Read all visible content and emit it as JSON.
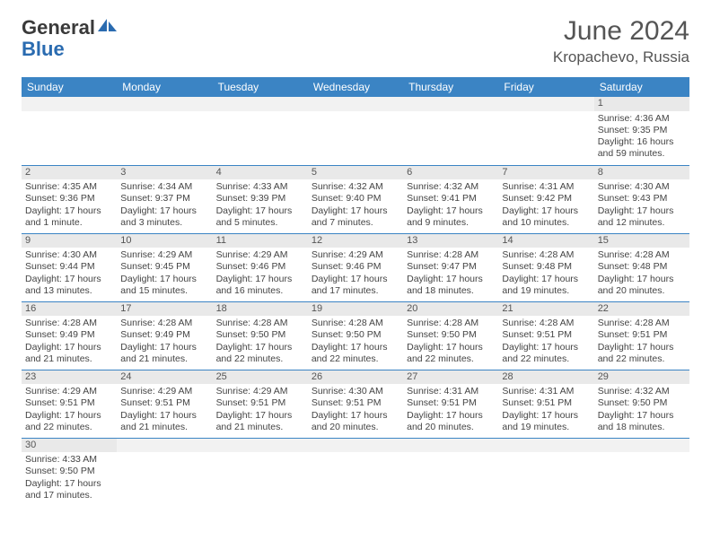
{
  "logo": {
    "text_general": "Genera",
    "text_l": "l",
    "text_blue": "Blue"
  },
  "header": {
    "month_title": "June 2024",
    "location": "Kropachevo, Russia"
  },
  "colors": {
    "header_bg": "#3b84c4",
    "header_text": "#ffffff",
    "daynum_bg": "#e9e9e9",
    "border": "#3b84c4",
    "text": "#444444",
    "logo_dark": "#3a3a3a",
    "logo_blue": "#2a6bb0"
  },
  "weekdays": [
    "Sunday",
    "Monday",
    "Tuesday",
    "Wednesday",
    "Thursday",
    "Friday",
    "Saturday"
  ],
  "layout": {
    "columns": 7,
    "rows": 6,
    "first_weekday_index": 6,
    "days_in_month": 30
  },
  "days": {
    "1": {
      "sunrise": "4:36 AM",
      "sunset": "9:35 PM",
      "daylight": "16 hours and 59 minutes."
    },
    "2": {
      "sunrise": "4:35 AM",
      "sunset": "9:36 PM",
      "daylight": "17 hours and 1 minute."
    },
    "3": {
      "sunrise": "4:34 AM",
      "sunset": "9:37 PM",
      "daylight": "17 hours and 3 minutes."
    },
    "4": {
      "sunrise": "4:33 AM",
      "sunset": "9:39 PM",
      "daylight": "17 hours and 5 minutes."
    },
    "5": {
      "sunrise": "4:32 AM",
      "sunset": "9:40 PM",
      "daylight": "17 hours and 7 minutes."
    },
    "6": {
      "sunrise": "4:32 AM",
      "sunset": "9:41 PM",
      "daylight": "17 hours and 9 minutes."
    },
    "7": {
      "sunrise": "4:31 AM",
      "sunset": "9:42 PM",
      "daylight": "17 hours and 10 minutes."
    },
    "8": {
      "sunrise": "4:30 AM",
      "sunset": "9:43 PM",
      "daylight": "17 hours and 12 minutes."
    },
    "9": {
      "sunrise": "4:30 AM",
      "sunset": "9:44 PM",
      "daylight": "17 hours and 13 minutes."
    },
    "10": {
      "sunrise": "4:29 AM",
      "sunset": "9:45 PM",
      "daylight": "17 hours and 15 minutes."
    },
    "11": {
      "sunrise": "4:29 AM",
      "sunset": "9:46 PM",
      "daylight": "17 hours and 16 minutes."
    },
    "12": {
      "sunrise": "4:29 AM",
      "sunset": "9:46 PM",
      "daylight": "17 hours and 17 minutes."
    },
    "13": {
      "sunrise": "4:28 AM",
      "sunset": "9:47 PM",
      "daylight": "17 hours and 18 minutes."
    },
    "14": {
      "sunrise": "4:28 AM",
      "sunset": "9:48 PM",
      "daylight": "17 hours and 19 minutes."
    },
    "15": {
      "sunrise": "4:28 AM",
      "sunset": "9:48 PM",
      "daylight": "17 hours and 20 minutes."
    },
    "16": {
      "sunrise": "4:28 AM",
      "sunset": "9:49 PM",
      "daylight": "17 hours and 21 minutes."
    },
    "17": {
      "sunrise": "4:28 AM",
      "sunset": "9:49 PM",
      "daylight": "17 hours and 21 minutes."
    },
    "18": {
      "sunrise": "4:28 AM",
      "sunset": "9:50 PM",
      "daylight": "17 hours and 22 minutes."
    },
    "19": {
      "sunrise": "4:28 AM",
      "sunset": "9:50 PM",
      "daylight": "17 hours and 22 minutes."
    },
    "20": {
      "sunrise": "4:28 AM",
      "sunset": "9:50 PM",
      "daylight": "17 hours and 22 minutes."
    },
    "21": {
      "sunrise": "4:28 AM",
      "sunset": "9:51 PM",
      "daylight": "17 hours and 22 minutes."
    },
    "22": {
      "sunrise": "4:28 AM",
      "sunset": "9:51 PM",
      "daylight": "17 hours and 22 minutes."
    },
    "23": {
      "sunrise": "4:29 AM",
      "sunset": "9:51 PM",
      "daylight": "17 hours and 22 minutes."
    },
    "24": {
      "sunrise": "4:29 AM",
      "sunset": "9:51 PM",
      "daylight": "17 hours and 21 minutes."
    },
    "25": {
      "sunrise": "4:29 AM",
      "sunset": "9:51 PM",
      "daylight": "17 hours and 21 minutes."
    },
    "26": {
      "sunrise": "4:30 AM",
      "sunset": "9:51 PM",
      "daylight": "17 hours and 20 minutes."
    },
    "27": {
      "sunrise": "4:31 AM",
      "sunset": "9:51 PM",
      "daylight": "17 hours and 20 minutes."
    },
    "28": {
      "sunrise": "4:31 AM",
      "sunset": "9:51 PM",
      "daylight": "17 hours and 19 minutes."
    },
    "29": {
      "sunrise": "4:32 AM",
      "sunset": "9:50 PM",
      "daylight": "17 hours and 18 minutes."
    },
    "30": {
      "sunrise": "4:33 AM",
      "sunset": "9:50 PM",
      "daylight": "17 hours and 17 minutes."
    }
  },
  "labels": {
    "sunrise": "Sunrise: ",
    "sunset": "Sunset: ",
    "daylight": "Daylight: "
  }
}
